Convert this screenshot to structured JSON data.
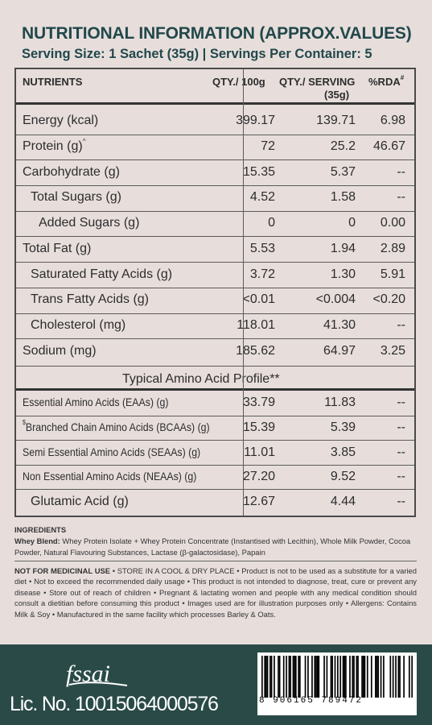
{
  "header": {
    "title": "NUTRITIONAL INFORMATION (APPROX.VALUES)",
    "serving": "Serving Size: 1 Sachet (35g) | Servings Per Container: 5"
  },
  "table": {
    "col_nutrients": "NUTRIENTS",
    "col_per100": "QTY./ 100g",
    "col_serving_a": "QTY./ SERVING",
    "col_serving_b": "(35g)",
    "col_rda": "%RDA",
    "col_rda_mark": "#",
    "amino_heading": "Typical Amino Acid Profile**",
    "rows": [
      {
        "name": "Energy (kcal)",
        "mark": "",
        "per100": "399.17",
        "serving": "139.71",
        "rda": "6.98"
      },
      {
        "name": "Protein (g)",
        "mark": "^",
        "per100": "72",
        "serving": "25.2",
        "rda": "46.67"
      },
      {
        "name": "Carbohydrate (g)",
        "mark": "",
        "per100": "15.35",
        "serving": "5.37",
        "rda": "--"
      },
      {
        "name": "Total Sugars (g)",
        "mark": "",
        "per100": "4.52",
        "serving": "1.58",
        "rda": "--"
      },
      {
        "name": "Added Sugars (g)",
        "mark": "",
        "per100": "0",
        "serving": "0",
        "rda": "0.00"
      },
      {
        "name": "Total Fat (g)",
        "mark": "",
        "per100": "5.53",
        "serving": "1.94",
        "rda": "2.89"
      },
      {
        "name": "Saturated Fatty Acids (g)",
        "mark": "",
        "per100": "3.72",
        "serving": "1.30",
        "rda": "5.91"
      },
      {
        "name": "Trans Fatty Acids (g)",
        "mark": "",
        "per100": "<0.01",
        "serving": "<0.004",
        "rda": "<0.20"
      },
      {
        "name": "Cholesterol (mg)",
        "mark": "",
        "per100": "118.01",
        "serving": "41.30",
        "rda": "--"
      },
      {
        "name": "Sodium (mg)",
        "mark": "",
        "per100": "185.62",
        "serving": "64.97",
        "rda": "3.25"
      }
    ],
    "amino_rows": [
      {
        "name": "Essential Amino Acids (EAAs) (g)",
        "mark": "",
        "per100": "33.79",
        "serving": "11.83",
        "rda": "--"
      },
      {
        "name": "Branched Chain Amino Acids (BCAAs) (g)",
        "mark": "$",
        "per100": "15.39",
        "serving": "5.39",
        "rda": "--"
      },
      {
        "name": "Semi Essential Amino Acids (SEAAs) (g)",
        "mark": "",
        "per100": "11.01",
        "serving": "3.85",
        "rda": "--"
      },
      {
        "name": "Non Essential Amino Acids (NEAAs) (g)",
        "mark": "",
        "per100": "27.20",
        "serving": "9.52",
        "rda": "--"
      },
      {
        "name": "Glutamic Acid (g)",
        "mark": "",
        "per100": "12.67",
        "serving": "4.44",
        "rda": "--"
      }
    ]
  },
  "ingredients": {
    "heading": "INGREDIENTS",
    "label": "Whey Blend:",
    "text": "Whey Protein Isolate + Whey Protein Concentrate (Instantised with Lecithin), Whole Milk Powder, Cocoa Powder, Natural Flavouring Substances, Lactase (β-galactosidase), Papain"
  },
  "disclaimer": {
    "heading": "NOT FOR MEDICINAL USE",
    "text": " • STORE IN A COOL & DRY PLACE • Product is not to be used as a substitute for a varied diet • Not to exceed the recommended daily usage • This product is not intended to diagnose, treat, cure or prevent any disease • Store out of reach of children • Pregnant & lactating women and people with any medical condition should consult a dietitian before consuming this product • Images used are for illustration purposes only • Allergens: Contains Milk & Soy • Manufactured in the same facility which processes Barley & Oats."
  },
  "footer": {
    "fssai_logo": "fssai",
    "license": "Lic. No. 10015064000576",
    "barcode_number": "8 906165 789472",
    "barcode_bars": "1011101101001100101011011101100010100101111000101001101010101110010110110011101001001110101000010101011001000101"
  },
  "colors": {
    "background": "#e7dedc",
    "accent": "#22484a",
    "footer": "#2a4a48"
  }
}
